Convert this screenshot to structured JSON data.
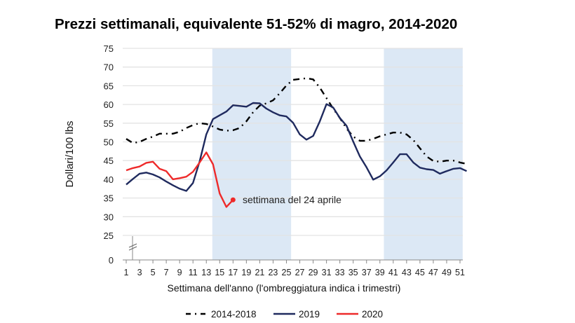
{
  "chart_data": {
    "type": "line",
    "title": "Prezzi settimanali, equivalente 51-52% di magro, 2014-2020",
    "xlabel": "Settimana dell'anno (l'ombreggiatura indica i trimestri)",
    "ylabel": "Dollari/100 lbs",
    "ylim": [
      0,
      75
    ],
    "y_axis_break": [
      0,
      25
    ],
    "yticks": [
      0,
      25,
      30,
      35,
      40,
      45,
      50,
      55,
      60,
      65,
      70,
      75
    ],
    "xlim": [
      0.5,
      52
    ],
    "xticks": [
      1,
      3,
      5,
      7,
      9,
      11,
      13,
      15,
      17,
      19,
      21,
      23,
      25,
      27,
      29,
      31,
      33,
      35,
      37,
      39,
      41,
      43,
      45,
      47,
      49,
      51
    ],
    "grid": true,
    "legend_position": "bottom",
    "shaded_quarters": [
      [
        13.9,
        25.7
      ],
      [
        39.6,
        51.4
      ]
    ],
    "shade_color": "#dce8f5",
    "annotation": {
      "text": "settimana del 24 aprile",
      "series": "2020",
      "week": 17
    },
    "series": [
      {
        "name": "2014-2018",
        "color": "#000000",
        "style": "dash-dot",
        "x": [
          1,
          2,
          3,
          4,
          5,
          6,
          7,
          8,
          9,
          10,
          11,
          12,
          13,
          14,
          15,
          16,
          17,
          18,
          19,
          20,
          21,
          22,
          23,
          24,
          25,
          26,
          27,
          28,
          29,
          30,
          31,
          32,
          33,
          34,
          35,
          36,
          37,
          38,
          39,
          40,
          41,
          42,
          43,
          44,
          45,
          46,
          47,
          48,
          49,
          50,
          51,
          52
        ],
        "values": [
          50.8,
          49.7,
          50.0,
          50.8,
          51.4,
          52.2,
          52.2,
          52.2,
          52.7,
          53.7,
          54.5,
          55.0,
          54.8,
          54.1,
          53.3,
          53.0,
          53.1,
          53.7,
          55.5,
          57.9,
          59.7,
          60.3,
          61.1,
          63.0,
          65.1,
          66.6,
          66.8,
          67.0,
          66.7,
          64.5,
          61.7,
          58.9,
          56.4,
          53.6,
          51.4,
          50.3,
          50.3,
          50.8,
          51.5,
          52.0,
          52.5,
          52.5,
          52.0,
          50.5,
          48.3,
          46.1,
          44.9,
          44.7,
          45.0,
          45.0,
          44.5,
          44.1
        ]
      },
      {
        "name": "2019",
        "color": "#1f2a5e",
        "style": "solid",
        "x": [
          1,
          2,
          3,
          4,
          5,
          6,
          7,
          8,
          9,
          10,
          11,
          12,
          13,
          14,
          15,
          16,
          17,
          18,
          19,
          20,
          21,
          22,
          23,
          24,
          25,
          26,
          27,
          28,
          29,
          30,
          31,
          32,
          33,
          34,
          35,
          36,
          37,
          38,
          39,
          40,
          41,
          42,
          43,
          44,
          45,
          46,
          47,
          48,
          49,
          50,
          51,
          52
        ],
        "values": [
          38.6,
          40.1,
          41.5,
          41.8,
          41.3,
          40.5,
          39.4,
          38.4,
          37.5,
          36.9,
          39.0,
          44.8,
          52.0,
          56.1,
          57.1,
          58.1,
          59.8,
          59.6,
          59.4,
          60.4,
          60.3,
          58.9,
          57.9,
          57.1,
          56.8,
          55.1,
          52.0,
          50.6,
          51.6,
          55.5,
          60.1,
          59.2,
          56.4,
          54.3,
          50.1,
          46.1,
          43.2,
          39.9,
          40.8,
          42.4,
          44.5,
          46.7,
          46.7,
          44.5,
          43.1,
          42.7,
          42.5,
          41.5,
          42.2,
          42.8,
          43.0,
          42.2
        ]
      },
      {
        "name": "2020",
        "color": "#ee2a2a",
        "style": "solid",
        "x": [
          1,
          2,
          3,
          4,
          5,
          6,
          7,
          8,
          9,
          10,
          11,
          12,
          13,
          14,
          15,
          16,
          17
        ],
        "values": [
          42.4,
          43.0,
          43.4,
          44.4,
          44.7,
          42.8,
          42.2,
          40.0,
          40.3,
          40.7,
          42.0,
          44.5,
          47.2,
          44.0,
          36.2,
          32.6,
          34.5
        ]
      }
    ]
  }
}
